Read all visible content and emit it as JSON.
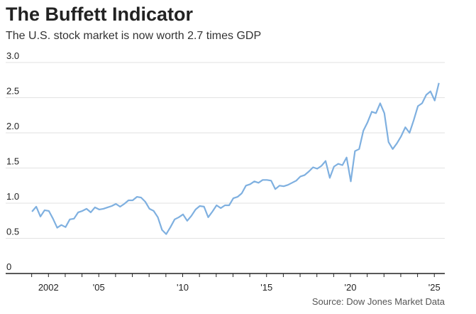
{
  "chart_data": {
    "type": "line",
    "title": "The Buffett Indicator",
    "subtitle": "The U.S. stock market is now worth 2.7 times GDP",
    "source": "Source: Dow Jones Market Data",
    "xlabel": "",
    "ylabel": "",
    "ylim": [
      0,
      3.0
    ],
    "xlim": [
      2000,
      2025.75
    ],
    "grid": true,
    "y_ticks": [
      0,
      0.5,
      1.0,
      1.5,
      2.0,
      2.5,
      3.0
    ],
    "y_tick_labels": [
      "0",
      "0.5",
      "1.0",
      "1.5",
      "2.0",
      "2.5",
      "3.0"
    ],
    "x_ticks": [
      2002,
      2005,
      2010,
      2015,
      2020,
      2025
    ],
    "x_tick_labels": [
      "2002",
      "'05",
      "'10",
      "'15",
      "'20",
      "'25"
    ],
    "line_color": "#7fb0e0",
    "x": [
      "2001Q1",
      "2001Q2",
      "2001Q3",
      "2001Q4",
      "2002Q1",
      "2002Q2",
      "2002Q3",
      "2002Q4",
      "2003Q1",
      "2003Q2",
      "2003Q3",
      "2003Q4",
      "2004Q1",
      "2004Q2",
      "2004Q3",
      "2004Q4",
      "2005Q1",
      "2005Q2",
      "2005Q3",
      "2005Q4",
      "2006Q1",
      "2006Q2",
      "2006Q3",
      "2006Q4",
      "2007Q1",
      "2007Q2",
      "2007Q3",
      "2007Q4",
      "2008Q1",
      "2008Q2",
      "2008Q3",
      "2008Q4",
      "2009Q1",
      "2009Q2",
      "2009Q3",
      "2009Q4",
      "2010Q1",
      "2010Q2",
      "2010Q3",
      "2010Q4",
      "2011Q1",
      "2011Q2",
      "2011Q3",
      "2011Q4",
      "2012Q1",
      "2012Q2",
      "2012Q3",
      "2012Q4",
      "2013Q1",
      "2013Q2",
      "2013Q3",
      "2013Q4",
      "2014Q1",
      "2014Q2",
      "2014Q3",
      "2014Q4",
      "2015Q1",
      "2015Q2",
      "2015Q3",
      "2015Q4",
      "2016Q1",
      "2016Q2",
      "2016Q3",
      "2016Q4",
      "2017Q1",
      "2017Q2",
      "2017Q3",
      "2017Q4",
      "2018Q1",
      "2018Q2",
      "2018Q3",
      "2018Q4",
      "2019Q1",
      "2019Q2",
      "2019Q3",
      "2019Q4",
      "2020Q1",
      "2020Q2",
      "2020Q3",
      "2020Q4",
      "2021Q1",
      "2021Q2",
      "2021Q3",
      "2021Q4",
      "2022Q1",
      "2022Q2",
      "2022Q3",
      "2022Q4",
      "2023Q1",
      "2023Q2",
      "2023Q3",
      "2023Q4",
      "2024Q1",
      "2024Q2",
      "2024Q3",
      "2024Q4",
      "2025Q1",
      "2025Q2"
    ],
    "values": [
      0.88,
      0.95,
      0.81,
      0.9,
      0.89,
      0.78,
      0.65,
      0.69,
      0.66,
      0.77,
      0.78,
      0.87,
      0.89,
      0.92,
      0.87,
      0.94,
      0.91,
      0.92,
      0.94,
      0.96,
      0.99,
      0.95,
      0.99,
      1.04,
      1.04,
      1.09,
      1.08,
      1.02,
      0.92,
      0.89,
      0.8,
      0.62,
      0.56,
      0.66,
      0.77,
      0.8,
      0.84,
      0.75,
      0.82,
      0.91,
      0.96,
      0.95,
      0.8,
      0.88,
      0.97,
      0.93,
      0.97,
      0.97,
      1.07,
      1.09,
      1.14,
      1.25,
      1.27,
      1.31,
      1.29,
      1.33,
      1.33,
      1.32,
      1.2,
      1.25,
      1.24,
      1.26,
      1.29,
      1.32,
      1.38,
      1.4,
      1.45,
      1.51,
      1.49,
      1.53,
      1.6,
      1.36,
      1.52,
      1.56,
      1.54,
      1.65,
      1.31,
      1.74,
      1.77,
      2.03,
      2.15,
      2.3,
      2.28,
      2.42,
      2.28,
      1.87,
      1.77,
      1.85,
      1.95,
      2.08,
      2.0,
      2.18,
      2.38,
      2.42,
      2.54,
      2.59,
      2.46,
      2.71
    ]
  }
}
